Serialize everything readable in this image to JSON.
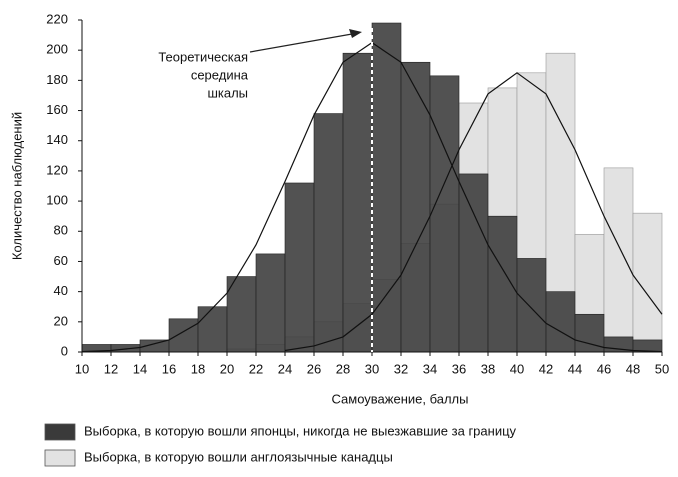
{
  "chart_data": {
    "type": "histogram",
    "xlabel": "Самоуважение, баллы",
    "ylabel": "Количество наблюдений",
    "bins": [
      10,
      12,
      14,
      16,
      18,
      20,
      22,
      24,
      26,
      28,
      30,
      32,
      34,
      36,
      38,
      40,
      42,
      44,
      46,
      48,
      50
    ],
    "series": [
      {
        "name": "Выборка, в которую вошли англоязычные канадцы",
        "color": "#e2e2e2",
        "values": [
          0,
          0,
          0,
          0,
          0,
          2,
          5,
          10,
          20,
          32,
          48,
          72,
          98,
          165,
          175,
          185,
          198,
          78,
          122,
          92
        ],
        "curve": {
          "x": [
            24,
            26,
            28,
            30,
            32,
            34,
            36,
            38,
            40,
            42,
            44,
            46,
            48,
            50
          ],
          "values": [
            1,
            4,
            10,
            25,
            51,
            90,
            134,
            171,
            185,
            171,
            134,
            90,
            51,
            25
          ]
        }
      },
      {
        "name": "Выборка, в которую вошли японцы, никогда не выезжавшие за границу",
        "color": "#3a3a3a",
        "values": [
          5,
          5,
          8,
          22,
          30,
          50,
          65,
          112,
          158,
          198,
          218,
          192,
          183,
          118,
          90,
          62,
          40,
          25,
          10,
          8
        ],
        "curve": {
          "x": [
            10,
            12,
            14,
            16,
            18,
            20,
            22,
            24,
            26,
            28,
            30,
            32,
            34,
            36,
            38,
            40,
            42,
            44,
            46,
            48,
            50
          ],
          "values": [
            0.3,
            1,
            3,
            8,
            19,
            39,
            71,
            113,
            157,
            192,
            205,
            192,
            157,
            113,
            71,
            39,
            19,
            8,
            3,
            1,
            0.3
          ]
        }
      }
    ],
    "annotation": {
      "lines": [
        "Теоретическая",
        "середина",
        "шкалы"
      ],
      "x": 30
    },
    "xlim": [
      10,
      50
    ],
    "ylim": [
      0,
      220
    ],
    "xticks": [
      10,
      12,
      14,
      16,
      18,
      20,
      22,
      24,
      26,
      28,
      30,
      32,
      34,
      36,
      38,
      40,
      42,
      44,
      46,
      48,
      50
    ],
    "yticks": [
      0,
      20,
      40,
      60,
      80,
      100,
      120,
      140,
      160,
      180,
      200,
      220
    ]
  }
}
